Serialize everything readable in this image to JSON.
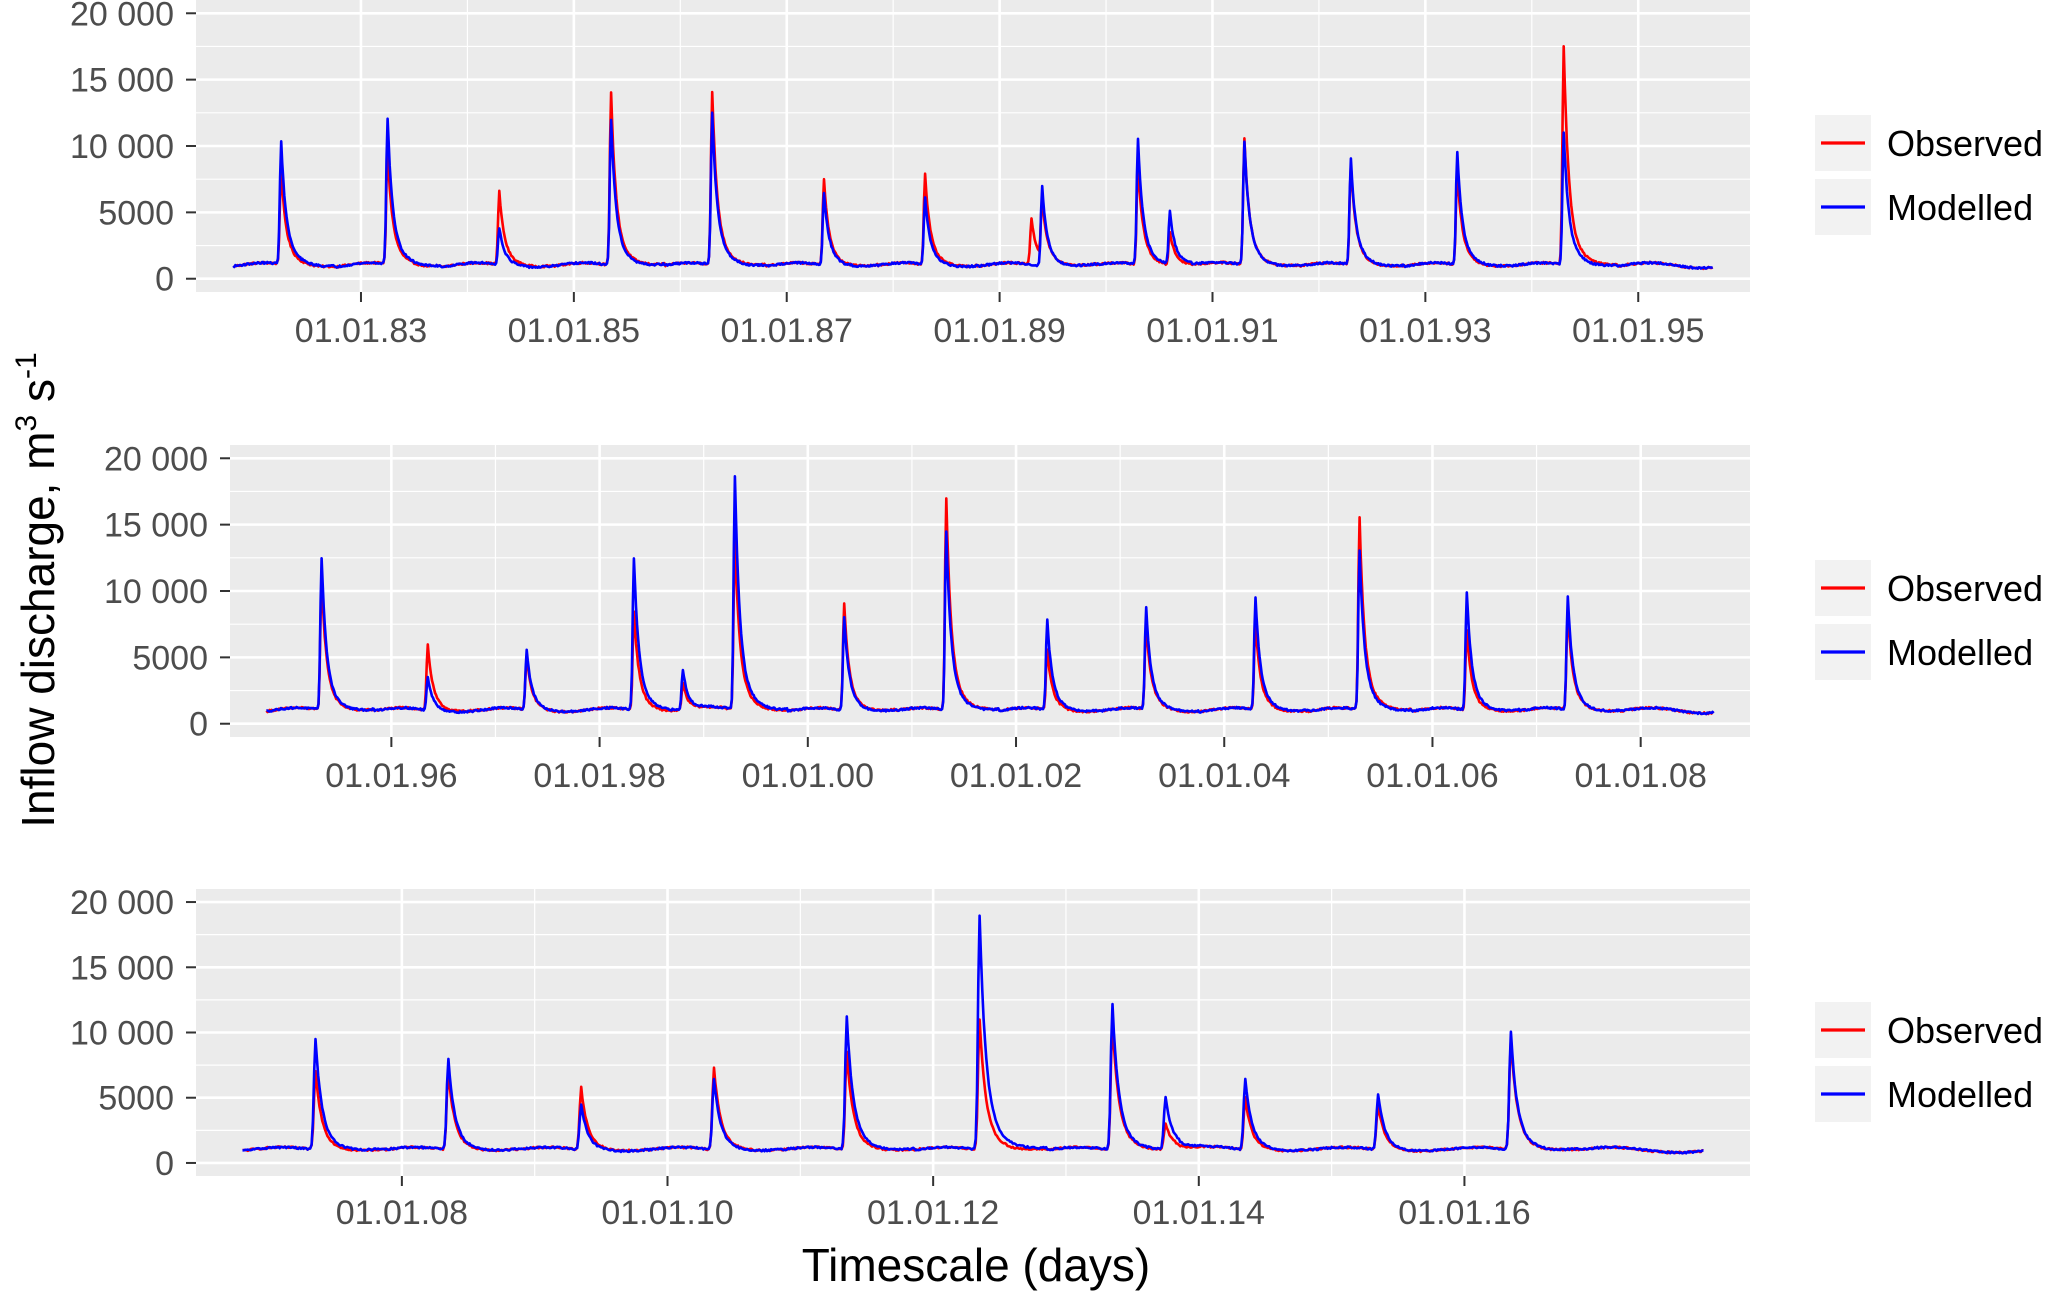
{
  "figure": {
    "ylabel_main": "Inflow discharge, m",
    "ylabel_sup1": "3",
    "ylabel_mid": " s",
    "ylabel_sup2": "-1",
    "xlabel": "Timescale (days)"
  },
  "colors": {
    "observed": "#ff0000",
    "modelled": "#0000ff",
    "panel_bg": "#ebebeb",
    "grid": "#ffffff",
    "tick_text": "#4d4d4d"
  },
  "chart_data": [
    {
      "type": "line",
      "x_unit": "year",
      "xlim": [
        1981.45,
        1996.05
      ],
      "ylim": [
        -1000,
        21000
      ],
      "grid": true,
      "legend_position": "right",
      "legend": [
        "Observed",
        "Modelled"
      ],
      "yticks": [
        0,
        5000,
        10000,
        15000,
        20000
      ],
      "ytick_labels": [
        "0",
        "5000",
        "10 000",
        "15 000",
        "20 000"
      ],
      "xticks": [
        1983,
        1985,
        1987,
        1989,
        1991,
        1993,
        1995
      ],
      "xtick_labels": [
        "01.01.83",
        "01.01.85",
        "01.01.87",
        "01.01.89",
        "01.01.91",
        "01.01.93",
        "01.01.95"
      ],
      "series": [
        {
          "name": "Observed",
          "baseline": 1000,
          "peaks": [
            [
              1982.25,
              8000
            ],
            [
              1983.25,
              9500
            ],
            [
              1984.3,
              6500
            ],
            [
              1985.35,
              14000
            ],
            [
              1986.3,
              14000
            ],
            [
              1987.35,
              7500
            ],
            [
              1988.3,
              7800
            ],
            [
              1989.3,
              4500
            ],
            [
              1989.4,
              5500
            ],
            [
              1990.3,
              8500
            ],
            [
              1990.6,
              3500
            ],
            [
              1991.3,
              10500
            ],
            [
              1992.3,
              8500
            ],
            [
              1993.3,
              8000
            ],
            [
              1994.3,
              17500
            ]
          ]
        },
        {
          "name": "Modelled",
          "baseline": 1000,
          "peaks": [
            [
              1982.25,
              10300
            ],
            [
              1983.25,
              12000
            ],
            [
              1984.3,
              3800
            ],
            [
              1985.35,
              12000
            ],
            [
              1986.3,
              12400
            ],
            [
              1987.35,
              6500
            ],
            [
              1988.3,
              6000
            ],
            [
              1989.4,
              7000
            ],
            [
              1990.3,
              10500
            ],
            [
              1990.6,
              5000
            ],
            [
              1991.3,
              10300
            ],
            [
              1992.3,
              9000
            ],
            [
              1993.3,
              9500
            ],
            [
              1994.3,
              11000
            ]
          ]
        }
      ]
    },
    {
      "type": "line",
      "x_unit": "year",
      "xlim": [
        1994.45,
        2009.05
      ],
      "ylim": [
        -1000,
        21000
      ],
      "grid": true,
      "legend_position": "right",
      "legend": [
        "Observed",
        "Modelled"
      ],
      "yticks": [
        0,
        5000,
        10000,
        15000,
        20000
      ],
      "ytick_labels": [
        "0",
        "5000",
        "10 000",
        "15 000",
        "20 000"
      ],
      "xticks": [
        1996,
        1998,
        2000,
        2002,
        2004,
        2006,
        2008
      ],
      "xtick_labels": [
        "01.01.96",
        "01.01.98",
        "01.01.00",
        "01.01.02",
        "01.01.04",
        "01.01.06",
        "01.01.08"
      ],
      "series": [
        {
          "name": "Observed",
          "baseline": 1000,
          "peaks": [
            [
              1995.33,
              11000
            ],
            [
              1996.35,
              6000
            ],
            [
              1997.3,
              5000
            ],
            [
              1998.33,
              8500
            ],
            [
              1998.8,
              3000
            ],
            [
              1999.3,
              14000
            ],
            [
              2000.35,
              9000
            ],
            [
              2001.33,
              17000
            ],
            [
              2002.3,
              5500
            ],
            [
              2003.25,
              7500
            ],
            [
              2004.3,
              7500
            ],
            [
              2005.3,
              15500
            ],
            [
              2006.33,
              7000
            ],
            [
              2007.3,
              8500
            ]
          ]
        },
        {
          "name": "Modelled",
          "baseline": 1000,
          "peaks": [
            [
              1995.33,
              12500
            ],
            [
              1996.35,
              3500
            ],
            [
              1997.3,
              5500
            ],
            [
              1998.33,
              12500
            ],
            [
              1998.8,
              4000
            ],
            [
              1999.3,
              18500
            ],
            [
              2000.35,
              8000
            ],
            [
              2001.33,
              14500
            ],
            [
              2002.3,
              7800
            ],
            [
              2003.25,
              8600
            ],
            [
              2004.3,
              9500
            ],
            [
              2005.3,
              13000
            ],
            [
              2006.33,
              9900
            ],
            [
              2007.3,
              9600
            ]
          ]
        }
      ]
    },
    {
      "type": "line",
      "x_unit": "year",
      "xlim": [
        2006.45,
        2018.15
      ],
      "ylim": [
        -1000,
        21000
      ],
      "grid": true,
      "legend_position": "right",
      "legend": [
        "Observed",
        "Modelled"
      ],
      "yticks": [
        0,
        5000,
        10000,
        15000,
        20000
      ],
      "ytick_labels": [
        "0",
        "5000",
        "10 000",
        "15 000",
        "20 000"
      ],
      "xticks": [
        2008,
        2010,
        2012,
        2014,
        2016
      ],
      "xtick_labels": [
        "01.01.08",
        "01.01.10",
        "01.01.12",
        "01.01.14",
        "01.01.16"
      ],
      "series": [
        {
          "name": "Observed",
          "baseline": 1000,
          "peaks": [
            [
              2007.35,
              7000
            ],
            [
              2008.35,
              7000
            ],
            [
              2009.35,
              5800
            ],
            [
              2010.35,
              7300
            ],
            [
              2011.35,
              8500
            ],
            [
              2012.35,
              11000
            ],
            [
              2013.35,
              10800
            ],
            [
              2013.75,
              3000
            ],
            [
              2014.35,
              5000
            ],
            [
              2015.35,
              4500
            ],
            [
              2016.35,
              9500
            ]
          ]
        },
        {
          "name": "Modelled",
          "baseline": 1000,
          "peaks": [
            [
              2007.35,
              9500
            ],
            [
              2008.35,
              8000
            ],
            [
              2009.35,
              4500
            ],
            [
              2010.35,
              6500
            ],
            [
              2011.35,
              11300
            ],
            [
              2012.35,
              19000
            ],
            [
              2013.35,
              12200
            ],
            [
              2013.75,
              5000
            ],
            [
              2014.35,
              6500
            ],
            [
              2015.35,
              5300
            ],
            [
              2016.35,
              10000
            ]
          ]
        }
      ]
    }
  ]
}
